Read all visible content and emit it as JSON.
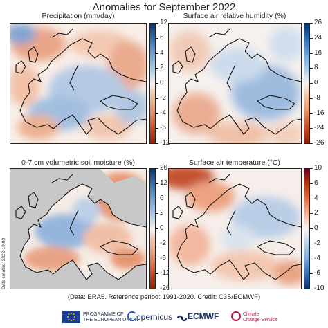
{
  "title": "Anomalies for September 2022",
  "panels": [
    {
      "key": "precip",
      "title": "Precipitation (mm/day)",
      "ticks": [
        "12",
        "6",
        "4",
        "2",
        "0",
        "-2",
        "-4",
        "-6",
        "-12"
      ],
      "colormap": "brown-to-blue",
      "land_mask": false
    },
    {
      "key": "rh",
      "title": "Surface air relative humidity (%)",
      "ticks": [
        "26",
        "24",
        "16",
        "8",
        "0",
        "-8",
        "-16",
        "-24",
        "-26"
      ],
      "colormap": "brown-to-blue",
      "land_mask": false
    },
    {
      "key": "soil",
      "title": "0-7 cm volumetric soil moisture (%)",
      "ticks": [
        "26",
        "12",
        "6",
        "2",
        "0",
        "-2",
        "-6",
        "-12",
        "-26"
      ],
      "colormap": "brown-to-blue",
      "land_mask": true
    },
    {
      "key": "temp",
      "title": "Surface air temperature (°C)",
      "ticks": [
        "10",
        "6",
        "4",
        "2",
        "0",
        "-2",
        "-4",
        "-6",
        "-10"
      ],
      "colormap": "blue-to-red",
      "land_mask": false
    }
  ],
  "date_created": "Date created: 2022-10-03",
  "caption": "(Data: ERA5.  Reference period: 1991-2020.  Credit: C3S/ECMWF)",
  "logos": {
    "eu_line1": "PROGRAMME OF",
    "eu_line2": "THE EUROPEAN UNION",
    "copernicus": "opernicus",
    "ecmwf": "ECMWF",
    "c3s_line1": "Climate",
    "c3s_line2": "Change Service"
  },
  "colors": {
    "ocean_mask": "#c8c8c8",
    "strong_red": "#b2360f",
    "strong_blue": "#1a4a8a",
    "neutral": "#f7f3f0"
  }
}
